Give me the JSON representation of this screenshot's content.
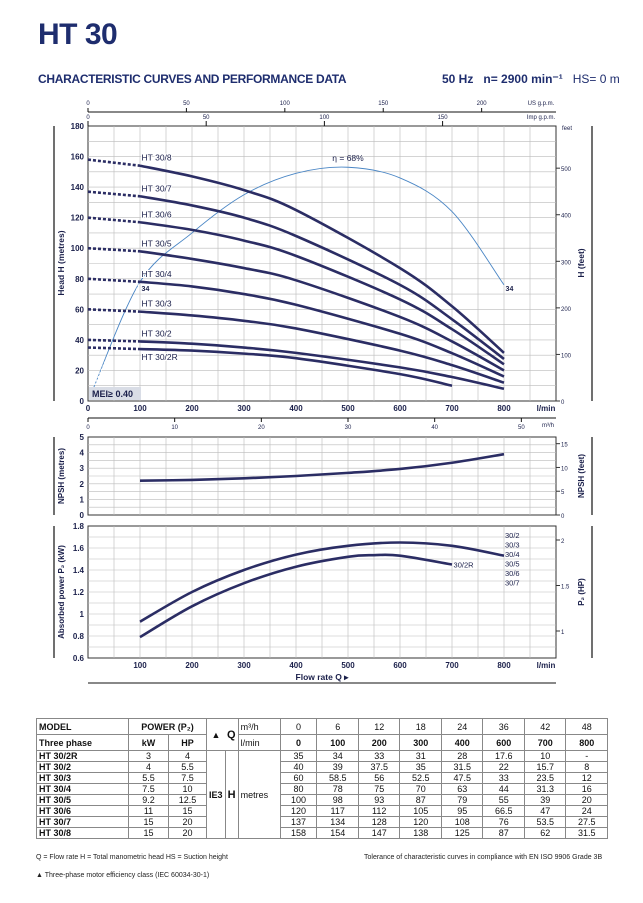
{
  "title": "HT 30",
  "subtitle": "CHARACTERISTIC CURVES AND PERFORMANCE DATA",
  "conditions": {
    "freq": "50 Hz",
    "speed": "n= 2900 min⁻¹",
    "hs": "HS= 0 m"
  },
  "colors": {
    "curve": "#2b2d64",
    "efficiency": "#4a86c5",
    "grid": "#bbbbbb",
    "mei_bg": "#d9dde6"
  },
  "chart_data": [
    {
      "type": "line",
      "name": "head",
      "xlabel": "l/min",
      "ylabel": "Head H (metres)",
      "ylabel_right": "H (feet)",
      "xlim": [
        0,
        900
      ],
      "ylim": [
        0,
        180
      ],
      "grid": true,
      "x_ticks": [
        0,
        100,
        200,
        300,
        400,
        500,
        600,
        700,
        800
      ],
      "x_unit": "l/min",
      "y_ticks": [
        0,
        20,
        40,
        60,
        80,
        100,
        120,
        140,
        160,
        180
      ],
      "feet_ticks": [
        0,
        100,
        200,
        300,
        400,
        500
      ],
      "feet_unit": "feet",
      "usgpm_ticks": [
        0,
        50,
        100,
        150,
        200
      ],
      "usgpm_unit": "US g.p.m.",
      "impgpm_ticks": [
        0,
        50,
        100,
        150
      ],
      "impgpm_unit": "Imp g.p.m.",
      "m3h_ticks": [
        0,
        10,
        20,
        30,
        40,
        50
      ],
      "m3h_unit": "m³/h",
      "x": [
        0,
        100,
        200,
        300,
        400,
        600,
        700,
        800
      ],
      "series": [
        {
          "name": "HT 30/2R",
          "values": [
            35,
            34,
            33,
            31,
            28,
            17.6,
            10,
            null
          ]
        },
        {
          "name": "HT 30/2",
          "values": [
            40,
            39,
            37.5,
            35,
            31.5,
            22,
            15.7,
            8
          ]
        },
        {
          "name": "HT 30/3",
          "values": [
            60,
            58.5,
            56,
            52.5,
            47.5,
            33,
            23.5,
            12
          ]
        },
        {
          "name": "HT 30/4",
          "values": [
            80,
            78,
            75,
            70,
            63,
            44,
            31.3,
            16
          ]
        },
        {
          "name": "HT 30/5",
          "values": [
            100,
            98,
            93,
            87,
            79,
            55,
            39,
            20
          ]
        },
        {
          "name": "HT 30/6",
          "values": [
            120,
            117,
            112,
            105,
            95,
            66.5,
            47,
            24
          ]
        },
        {
          "name": "HT 30/7",
          "values": [
            137,
            134,
            128,
            120,
            108,
            76,
            53.5,
            27.5
          ]
        },
        {
          "name": "HT 30/8",
          "values": [
            158,
            154,
            147,
            138,
            125,
            87,
            62,
            31.5
          ]
        }
      ],
      "efficiency": {
        "label": "η = 68%",
        "point_label": "34",
        "points": [
          [
            10,
            8
          ],
          [
            100,
            78
          ],
          [
            200,
            110
          ],
          [
            300,
            135
          ],
          [
            400,
            149
          ],
          [
            500,
            153
          ],
          [
            600,
            146
          ],
          [
            700,
            124
          ],
          [
            800,
            76
          ]
        ]
      },
      "mei": "MEI≥ 0.40"
    },
    {
      "type": "line",
      "name": "npsh",
      "ylabel": "NPSH (metres)",
      "ylabel_right": "NPSH (feet)",
      "xlim": [
        0,
        900
      ],
      "ylim": [
        0,
        5
      ],
      "y_ticks": [
        0,
        1,
        2,
        3,
        4,
        5
      ],
      "feet_ticks": [
        0,
        5,
        10,
        15
      ],
      "series": [
        {
          "name": "NPSH",
          "x": [
            100,
            200,
            300,
            400,
            500,
            600,
            700,
            800
          ],
          "values": [
            2.2,
            2.25,
            2.35,
            2.5,
            2.7,
            2.95,
            3.35,
            3.9
          ]
        }
      ]
    },
    {
      "type": "line",
      "name": "power",
      "xlabel": "Flow rate Q",
      "ylabel": "Absorbed power P₂ (kW)",
      "ylabel_right": "P₂ (HP)",
      "xlim": [
        0,
        900
      ],
      "ylim": [
        0.6,
        1.8
      ],
      "x_ticks": [
        100,
        200,
        300,
        400,
        500,
        600,
        700,
        800
      ],
      "x_unit": "l/min",
      "y_ticks": [
        0.6,
        0.8,
        1.0,
        1.2,
        1.4,
        1.6,
        1.8
      ],
      "hp_ticks": [
        1,
        1.5,
        2
      ],
      "series": [
        {
          "name": "30/2 30/3 30/4 30/5 30/6 30/7",
          "labels": [
            "30/2",
            "30/3",
            "30/4",
            "30/5",
            "30/6",
            "30/7"
          ],
          "x": [
            100,
            200,
            300,
            400,
            500,
            600,
            700,
            800
          ],
          "values": [
            0.93,
            1.2,
            1.4,
            1.54,
            1.62,
            1.65,
            1.62,
            1.53
          ]
        },
        {
          "name": "30/2R",
          "labels": [
            "30/2R"
          ],
          "x": [
            100,
            200,
            300,
            400,
            500,
            550,
            600,
            700
          ],
          "values": [
            0.79,
            1.07,
            1.28,
            1.43,
            1.52,
            1.535,
            1.53,
            1.45
          ]
        }
      ]
    }
  ],
  "table": {
    "h_model": "MODEL",
    "h_power": "POWER (P₂)",
    "h_q": "Q",
    "h_m3h": "m³/h",
    "h_phase": "Three phase",
    "h_kw": "kW",
    "h_hp": "HP",
    "h_tri": "▲",
    "h_lmin": "l/min",
    "m3h": [
      "0",
      "6",
      "12",
      "18",
      "24",
      "36",
      "42",
      "48"
    ],
    "lmin": [
      "0",
      "100",
      "200",
      "300",
      "400",
      "600",
      "700",
      "800"
    ],
    "ie": "IE3",
    "h": "H",
    "metres": "metres",
    "rows": [
      {
        "model": "HT 30/2R",
        "kw": "3",
        "hp": "4",
        "h": [
          "35",
          "34",
          "33",
          "31",
          "28",
          "17.6",
          "10",
          "-"
        ]
      },
      {
        "model": "HT 30/2",
        "kw": "4",
        "hp": "5.5",
        "h": [
          "40",
          "39",
          "37.5",
          "35",
          "31.5",
          "22",
          "15.7",
          "8"
        ]
      },
      {
        "model": "HT 30/3",
        "kw": "5.5",
        "hp": "7.5",
        "h": [
          "60",
          "58.5",
          "56",
          "52.5",
          "47.5",
          "33",
          "23.5",
          "12"
        ]
      },
      {
        "model": "HT 30/4",
        "kw": "7.5",
        "hp": "10",
        "h": [
          "80",
          "78",
          "75",
          "70",
          "63",
          "44",
          "31.3",
          "16"
        ]
      },
      {
        "model": "HT 30/5",
        "kw": "9.2",
        "hp": "12.5",
        "h": [
          "100",
          "98",
          "93",
          "87",
          "79",
          "55",
          "39",
          "20"
        ]
      },
      {
        "model": "HT 30/6",
        "kw": "11",
        "hp": "15",
        "h": [
          "120",
          "117",
          "112",
          "105",
          "95",
          "66.5",
          "47",
          "24"
        ]
      },
      {
        "model": "HT 30/7",
        "kw": "15",
        "hp": "20",
        "h": [
          "137",
          "134",
          "128",
          "120",
          "108",
          "76",
          "53.5",
          "27.5"
        ]
      },
      {
        "model": "HT 30/8",
        "kw": "15",
        "hp": "20",
        "h": [
          "158",
          "154",
          "147",
          "138",
          "125",
          "87",
          "62",
          "31.5"
        ]
      }
    ]
  },
  "footer": {
    "legend": "Q = Flow rate  H = Total manometric head  HS = Suction height",
    "tolerance": "Tolerance of characteristic curves in compliance with EN ISO 9906 Grade 3B",
    "efficiency_note": "▲  Three-phase motor efficiency class (IEC 60034-30-1)"
  }
}
